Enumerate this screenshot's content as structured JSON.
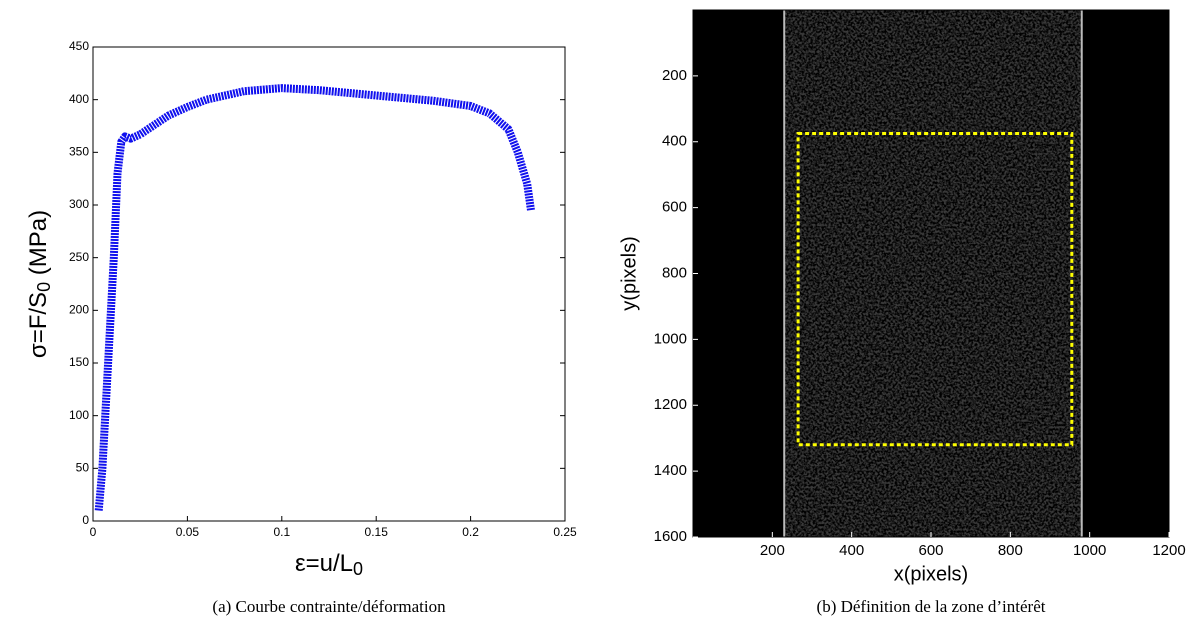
{
  "chart_data": [
    {
      "type": "line",
      "color": "#1010ee",
      "xlabel_parts": [
        "ε=u/L",
        "0"
      ],
      "ylabel_parts": [
        "σ=F/S",
        "0",
        " (MPa)"
      ],
      "caption": "(a)  Courbe contrainte/déformation",
      "x": [
        0.003,
        0.005,
        0.008,
        0.011,
        0.013,
        0.015,
        0.017,
        0.02,
        0.025,
        0.03,
        0.04,
        0.05,
        0.06,
        0.08,
        0.1,
        0.12,
        0.15,
        0.18,
        0.2,
        0.21,
        0.22,
        0.225,
        0.23,
        0.232
      ],
      "values": [
        10,
        50,
        150,
        250,
        330,
        360,
        365,
        363,
        367,
        373,
        385,
        393,
        400,
        408,
        411,
        409,
        404,
        399,
        394,
        387,
        372,
        350,
        320,
        295
      ],
      "xlim": [
        0,
        0.25
      ],
      "ylim": [
        0,
        450
      ],
      "xticks": [
        0,
        0.05,
        0.1,
        0.15,
        0.2,
        0.25
      ],
      "yticks": [
        0,
        50,
        100,
        150,
        200,
        250,
        300,
        350,
        400,
        450
      ]
    },
    {
      "type": "image",
      "xlabel": "x(pixels)",
      "ylabel": "y(pixels)",
      "caption": "(b)  Définition de la zone d’intérêt",
      "specimen_x": [
        230,
        980
      ],
      "roi_x": [
        265,
        955
      ],
      "roi_y": [
        375,
        1320
      ],
      "roi_color": "#ffff00",
      "xlim": [
        0,
        1200
      ],
      "ylim": [
        0,
        1600
      ],
      "xticks": [
        200,
        400,
        600,
        800,
        1000,
        1200
      ],
      "yticks": [
        200,
        400,
        600,
        800,
        1000,
        1200,
        1400,
        1600
      ]
    }
  ]
}
